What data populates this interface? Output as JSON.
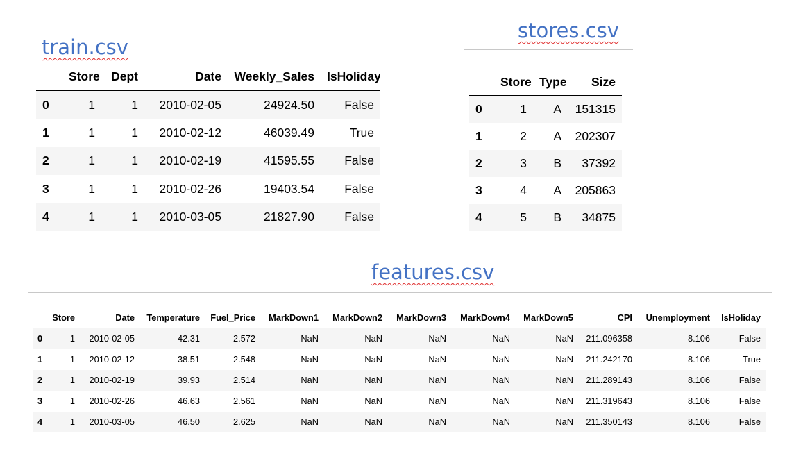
{
  "train": {
    "title": "train.csv",
    "columns": [
      "",
      "Store",
      "Dept",
      "Date",
      "Weekly_Sales",
      "IsHoliday"
    ],
    "rows": [
      [
        "0",
        "1",
        "1",
        "2010-02-05",
        "24924.50",
        "False"
      ],
      [
        "1",
        "1",
        "1",
        "2010-02-12",
        "46039.49",
        "True"
      ],
      [
        "2",
        "1",
        "1",
        "2010-02-19",
        "41595.55",
        "False"
      ],
      [
        "3",
        "1",
        "1",
        "2010-02-26",
        "19403.54",
        "False"
      ],
      [
        "4",
        "1",
        "1",
        "2010-03-05",
        "21827.90",
        "False"
      ]
    ]
  },
  "stores": {
    "title": "stores.csv",
    "columns": [
      "",
      "Store",
      "Type",
      "Size"
    ],
    "rows": [
      [
        "0",
        "1",
        "A",
        "151315"
      ],
      [
        "1",
        "2",
        "A",
        "202307"
      ],
      [
        "2",
        "3",
        "B",
        "37392"
      ],
      [
        "3",
        "4",
        "A",
        "205863"
      ],
      [
        "4",
        "5",
        "B",
        "34875"
      ]
    ]
  },
  "features": {
    "title": "features.csv",
    "columns": [
      "",
      "Store",
      "Date",
      "Temperature",
      "Fuel_Price",
      "MarkDown1",
      "MarkDown2",
      "MarkDown3",
      "MarkDown4",
      "MarkDown5",
      "CPI",
      "Unemployment",
      "IsHoliday"
    ],
    "rows": [
      [
        "0",
        "1",
        "2010-02-05",
        "42.31",
        "2.572",
        "NaN",
        "NaN",
        "NaN",
        "NaN",
        "NaN",
        "211.096358",
        "8.106",
        "False"
      ],
      [
        "1",
        "1",
        "2010-02-12",
        "38.51",
        "2.548",
        "NaN",
        "NaN",
        "NaN",
        "NaN",
        "NaN",
        "211.242170",
        "8.106",
        "True"
      ],
      [
        "2",
        "1",
        "2010-02-19",
        "39.93",
        "2.514",
        "NaN",
        "NaN",
        "NaN",
        "NaN",
        "NaN",
        "211.289143",
        "8.106",
        "False"
      ],
      [
        "3",
        "1",
        "2010-02-26",
        "46.63",
        "2.561",
        "NaN",
        "NaN",
        "NaN",
        "NaN",
        "NaN",
        "211.319643",
        "8.106",
        "False"
      ],
      [
        "4",
        "1",
        "2010-03-05",
        "46.50",
        "2.625",
        "NaN",
        "NaN",
        "NaN",
        "NaN",
        "NaN",
        "211.350143",
        "8.106",
        "False"
      ]
    ]
  }
}
